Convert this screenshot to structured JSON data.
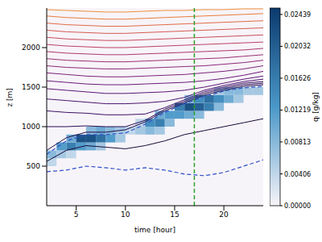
{
  "chart_data": {
    "type": "contour",
    "x_label": "time [hour]",
    "y_label": "z [m]",
    "xlim": [
      2,
      24
    ],
    "xticks": [
      5,
      10,
      15,
      20
    ],
    "ylim": [
      0,
      2500
    ],
    "yticks": [
      500,
      1000,
      1500,
      2000
    ],
    "x": [
      2,
      4,
      6,
      8,
      10,
      12,
      14,
      16,
      18,
      20,
      22,
      24
    ],
    "contours": [
      {
        "color": "#1a0a3a",
        "values": [
          560,
          700,
          760,
          740,
          720,
          760,
          820,
          900,
          950,
          1000,
          1050,
          1100
        ]
      },
      {
        "color": "#220b48",
        "values": [
          700,
          860,
          930,
          930,
          960,
          1060,
          1200,
          1300,
          1400,
          1460,
          1510,
          1530
        ]
      },
      {
        "color": "#2c0d55",
        "values": [
          1000,
          1000,
          1010,
          1000,
          1000,
          1080,
          1220,
          1320,
          1420,
          1480,
          1530,
          1550
        ]
      },
      {
        "color": "#3a1063",
        "values": [
          1200,
          1180,
          1170,
          1150,
          1150,
          1160,
          1240,
          1340,
          1440,
          1500,
          1550,
          1570
        ]
      },
      {
        "color": "#4a136d",
        "values": [
          1350,
          1330,
          1310,
          1290,
          1290,
          1300,
          1320,
          1370,
          1460,
          1520,
          1570,
          1600
        ]
      },
      {
        "color": "#5a1773",
        "values": [
          1480,
          1460,
          1440,
          1420,
          1420,
          1430,
          1440,
          1460,
          1500,
          1550,
          1600,
          1640
        ]
      },
      {
        "color": "#6b1c78",
        "values": [
          1580,
          1560,
          1540,
          1530,
          1530,
          1540,
          1550,
          1560,
          1580,
          1610,
          1650,
          1700
        ]
      },
      {
        "color": "#7c2279",
        "values": [
          1680,
          1660,
          1640,
          1630,
          1630,
          1640,
          1650,
          1660,
          1680,
          1700,
          1730,
          1770
        ]
      },
      {
        "color": "#8d2878",
        "values": [
          1770,
          1750,
          1740,
          1730,
          1730,
          1740,
          1750,
          1760,
          1770,
          1790,
          1810,
          1840
        ]
      },
      {
        "color": "#9e2f74",
        "values": [
          1860,
          1840,
          1830,
          1820,
          1820,
          1830,
          1840,
          1850,
          1860,
          1870,
          1890,
          1910
        ]
      },
      {
        "color": "#ae376e",
        "values": [
          1950,
          1930,
          1920,
          1910,
          1910,
          1920,
          1930,
          1940,
          1950,
          1960,
          1970,
          1990
        ]
      },
      {
        "color": "#bd4166",
        "values": [
          2040,
          2020,
          2010,
          2000,
          2000,
          2010,
          2020,
          2030,
          2040,
          2050,
          2060,
          2070
        ]
      },
      {
        "color": "#ca4c5d",
        "values": [
          2130,
          2110,
          2100,
          2090,
          2090,
          2100,
          2110,
          2120,
          2130,
          2140,
          2150,
          2160
        ]
      },
      {
        "color": "#d65a52",
        "values": [
          2220,
          2200,
          2190,
          2180,
          2180,
          2190,
          2200,
          2210,
          2220,
          2230,
          2240,
          2250
        ]
      },
      {
        "color": "#e06a48",
        "values": [
          2310,
          2290,
          2280,
          2270,
          2270,
          2280,
          2290,
          2300,
          2310,
          2320,
          2330,
          2340
        ]
      },
      {
        "color": "#e87c3e",
        "values": [
          2400,
          2380,
          2370,
          2360,
          2360,
          2370,
          2380,
          2390,
          2400,
          2410,
          2420,
          2430
        ]
      },
      {
        "color": "#f0903a",
        "values": [
          2480,
          2470,
          2460,
          2450,
          2450,
          2460,
          2470,
          2470,
          2480,
          2480,
          2490,
          2490
        ]
      }
    ],
    "dashed": [
      {
        "color": "#3050c8",
        "line_style": "dashed",
        "values": [
          430,
          450,
          500,
          480,
          450,
          480,
          450,
          400,
          380,
          420,
          500,
          580
        ]
      },
      {
        "color": "#3050c8",
        "line_style": "dashed",
        "values": [
          650,
          820,
          900,
          900,
          920,
          1030,
          1180,
          1290,
          1380,
          1450,
          1490,
          1510
        ]
      }
    ],
    "vline": {
      "x": 17,
      "color": "#2ca02c",
      "line_style": "dashed"
    },
    "cells": [
      [
        2,
        500,
        0.004
      ],
      [
        2,
        600,
        0.008
      ],
      [
        3,
        600,
        0.006
      ],
      [
        3,
        700,
        0.012
      ],
      [
        4,
        600,
        0.004
      ],
      [
        4,
        700,
        0.016
      ],
      [
        4,
        800,
        0.01
      ],
      [
        5,
        700,
        0.012
      ],
      [
        5,
        800,
        0.022
      ],
      [
        6,
        700,
        0.01
      ],
      [
        6,
        800,
        0.022
      ],
      [
        6,
        900,
        0.008
      ],
      [
        7,
        700,
        0.006
      ],
      [
        7,
        800,
        0.018
      ],
      [
        7,
        900,
        0.01
      ],
      [
        8,
        800,
        0.012
      ],
      [
        8,
        900,
        0.008
      ],
      [
        9,
        800,
        0.006
      ],
      [
        9,
        900,
        0.006
      ],
      [
        10,
        900,
        0.004
      ],
      [
        11,
        900,
        0.006
      ],
      [
        11,
        1000,
        0.004
      ],
      [
        12,
        900,
        0.008
      ],
      [
        12,
        1000,
        0.014
      ],
      [
        13,
        900,
        0.006
      ],
      [
        13,
        1000,
        0.016
      ],
      [
        13,
        1100,
        0.01
      ],
      [
        14,
        1000,
        0.008
      ],
      [
        14,
        1100,
        0.012
      ],
      [
        15,
        1100,
        0.012
      ],
      [
        15,
        1200,
        0.016
      ],
      [
        16,
        1100,
        0.01
      ],
      [
        16,
        1200,
        0.022
      ],
      [
        16,
        1300,
        0.008
      ],
      [
        17,
        1100,
        0.008
      ],
      [
        17,
        1200,
        0.02
      ],
      [
        17,
        1300,
        0.014
      ],
      [
        18,
        1200,
        0.016
      ],
      [
        18,
        1300,
        0.018
      ],
      [
        19,
        1200,
        0.008
      ],
      [
        19,
        1300,
        0.014
      ],
      [
        19,
        1400,
        0.006
      ],
      [
        20,
        1300,
        0.01
      ],
      [
        20,
        1400,
        0.008
      ],
      [
        21,
        1300,
        0.006
      ],
      [
        21,
        1400,
        0.008
      ],
      [
        22,
        1400,
        0.006
      ],
      [
        23,
        1400,
        0.006
      ]
    ],
    "colorbar": {
      "label": "qₗ [g/kg]",
      "range": [
        0,
        0.0252
      ],
      "ticks": [
        {
          "value": 0,
          "label": "0.00000"
        },
        0.00406,
        0.00813,
        0.01219,
        0.01626,
        0.02032,
        0.02439
      ],
      "colors": [
        "#f7f4f9",
        "#4a98c9",
        "#0b3a6e"
      ]
    }
  }
}
